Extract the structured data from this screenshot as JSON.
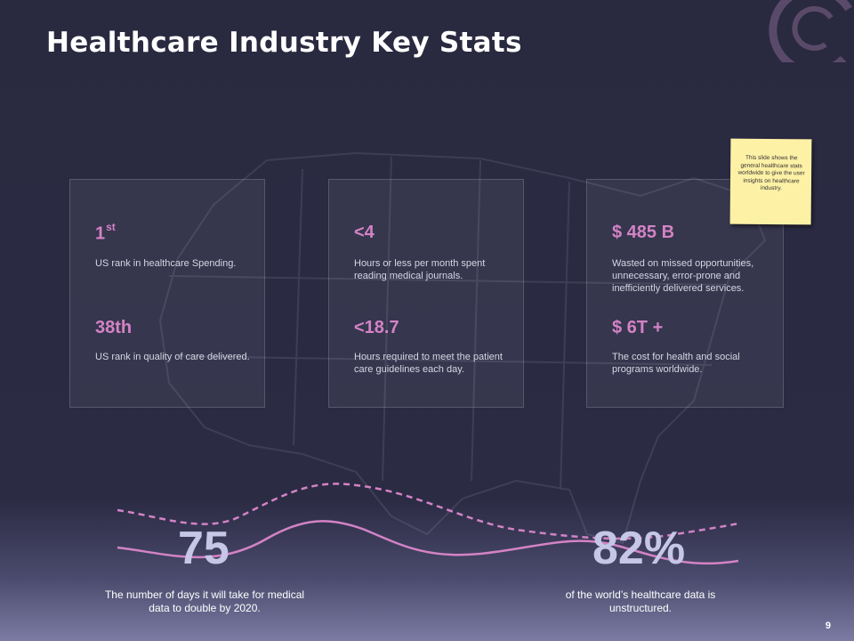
{
  "slide": {
    "title": "Healthcare Industry Key Stats",
    "page_number": "9"
  },
  "cards": [
    {
      "stat1": "1",
      "stat1_sup": "st",
      "desc1": "US rank in healthcare Spending.",
      "stat2": "38th",
      "desc2": "US rank in quality of care delivered."
    },
    {
      "stat1": "<4",
      "desc1": "Hours or less per month spent reading medical journals.",
      "stat2": "<18.7",
      "desc2": "Hours required to meet the patient care guidelines each day."
    },
    {
      "stat1": "$ 485 B",
      "desc1": "Wasted on missed opportunities, unnecessary, error-prone and inefficiently delivered services.",
      "stat2": "$ 6T +",
      "desc2": "The cost for health and social programs worldwide."
    }
  ],
  "sticky_note": {
    "text": "This slide shows the general healthcare stats worldwide to give the user insights on healthcare industry."
  },
  "bottom_stats": [
    {
      "value": "75",
      "caption": "The number of days it will take for medical data to double by 2020."
    },
    {
      "value": "82%",
      "caption": "of the world’s healthcare data is unstructured."
    }
  ],
  "colors": {
    "background": "#2b2b44",
    "accent_pink": "#d383c5",
    "big_number": "#c6c6e6",
    "note_yellow": "#fdf1a6"
  }
}
